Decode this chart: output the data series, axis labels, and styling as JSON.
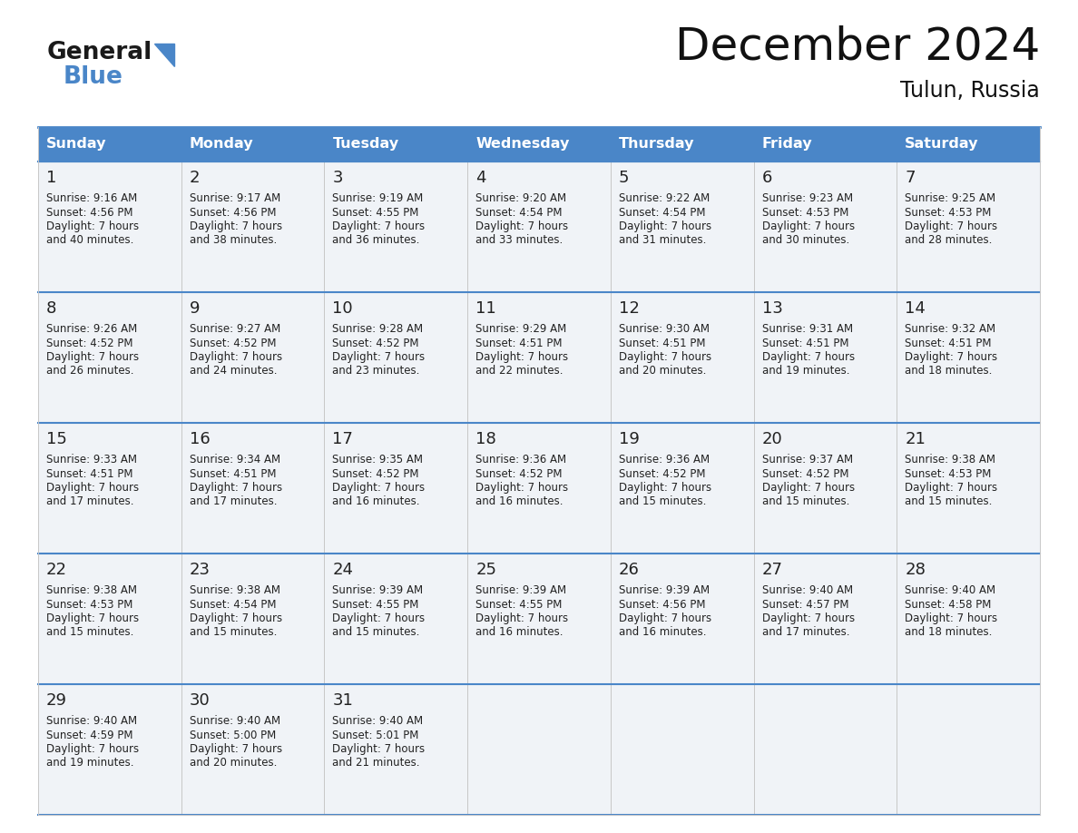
{
  "title": "December 2024",
  "subtitle": "Tulun, Russia",
  "header_bg": "#4a86c8",
  "header_text_color": "#ffffff",
  "cell_bg": "#f0f3f7",
  "empty_cell_bg": "#f0f3f7",
  "border_color": "#4a86c8",
  "row_border_color": "#4a86c8",
  "text_color": "#222222",
  "days_of_week": [
    "Sunday",
    "Monday",
    "Tuesday",
    "Wednesday",
    "Thursday",
    "Friday",
    "Saturday"
  ],
  "calendar_data": [
    [
      {
        "day": 1,
        "sunrise": "9:16 AM",
        "sunset": "4:56 PM",
        "daylight": "7 hours",
        "minutes": "and 40 minutes."
      },
      {
        "day": 2,
        "sunrise": "9:17 AM",
        "sunset": "4:56 PM",
        "daylight": "7 hours",
        "minutes": "and 38 minutes."
      },
      {
        "day": 3,
        "sunrise": "9:19 AM",
        "sunset": "4:55 PM",
        "daylight": "7 hours",
        "minutes": "and 36 minutes."
      },
      {
        "day": 4,
        "sunrise": "9:20 AM",
        "sunset": "4:54 PM",
        "daylight": "7 hours",
        "minutes": "and 33 minutes."
      },
      {
        "day": 5,
        "sunrise": "9:22 AM",
        "sunset": "4:54 PM",
        "daylight": "7 hours",
        "minutes": "and 31 minutes."
      },
      {
        "day": 6,
        "sunrise": "9:23 AM",
        "sunset": "4:53 PM",
        "daylight": "7 hours",
        "minutes": "and 30 minutes."
      },
      {
        "day": 7,
        "sunrise": "9:25 AM",
        "sunset": "4:53 PM",
        "daylight": "7 hours",
        "minutes": "and 28 minutes."
      }
    ],
    [
      {
        "day": 8,
        "sunrise": "9:26 AM",
        "sunset": "4:52 PM",
        "daylight": "7 hours",
        "minutes": "and 26 minutes."
      },
      {
        "day": 9,
        "sunrise": "9:27 AM",
        "sunset": "4:52 PM",
        "daylight": "7 hours",
        "minutes": "and 24 minutes."
      },
      {
        "day": 10,
        "sunrise": "9:28 AM",
        "sunset": "4:52 PM",
        "daylight": "7 hours",
        "minutes": "and 23 minutes."
      },
      {
        "day": 11,
        "sunrise": "9:29 AM",
        "sunset": "4:51 PM",
        "daylight": "7 hours",
        "minutes": "and 22 minutes."
      },
      {
        "day": 12,
        "sunrise": "9:30 AM",
        "sunset": "4:51 PM",
        "daylight": "7 hours",
        "minutes": "and 20 minutes."
      },
      {
        "day": 13,
        "sunrise": "9:31 AM",
        "sunset": "4:51 PM",
        "daylight": "7 hours",
        "minutes": "and 19 minutes."
      },
      {
        "day": 14,
        "sunrise": "9:32 AM",
        "sunset": "4:51 PM",
        "daylight": "7 hours",
        "minutes": "and 18 minutes."
      }
    ],
    [
      {
        "day": 15,
        "sunrise": "9:33 AM",
        "sunset": "4:51 PM",
        "daylight": "7 hours",
        "minutes": "and 17 minutes."
      },
      {
        "day": 16,
        "sunrise": "9:34 AM",
        "sunset": "4:51 PM",
        "daylight": "7 hours",
        "minutes": "and 17 minutes."
      },
      {
        "day": 17,
        "sunrise": "9:35 AM",
        "sunset": "4:52 PM",
        "daylight": "7 hours",
        "minutes": "and 16 minutes."
      },
      {
        "day": 18,
        "sunrise": "9:36 AM",
        "sunset": "4:52 PM",
        "daylight": "7 hours",
        "minutes": "and 16 minutes."
      },
      {
        "day": 19,
        "sunrise": "9:36 AM",
        "sunset": "4:52 PM",
        "daylight": "7 hours",
        "minutes": "and 15 minutes."
      },
      {
        "day": 20,
        "sunrise": "9:37 AM",
        "sunset": "4:52 PM",
        "daylight": "7 hours",
        "minutes": "and 15 minutes."
      },
      {
        "day": 21,
        "sunrise": "9:38 AM",
        "sunset": "4:53 PM",
        "daylight": "7 hours",
        "minutes": "and 15 minutes."
      }
    ],
    [
      {
        "day": 22,
        "sunrise": "9:38 AM",
        "sunset": "4:53 PM",
        "daylight": "7 hours",
        "minutes": "and 15 minutes."
      },
      {
        "day": 23,
        "sunrise": "9:38 AM",
        "sunset": "4:54 PM",
        "daylight": "7 hours",
        "minutes": "and 15 minutes."
      },
      {
        "day": 24,
        "sunrise": "9:39 AM",
        "sunset": "4:55 PM",
        "daylight": "7 hours",
        "minutes": "and 15 minutes."
      },
      {
        "day": 25,
        "sunrise": "9:39 AM",
        "sunset": "4:55 PM",
        "daylight": "7 hours",
        "minutes": "and 16 minutes."
      },
      {
        "day": 26,
        "sunrise": "9:39 AM",
        "sunset": "4:56 PM",
        "daylight": "7 hours",
        "minutes": "and 16 minutes."
      },
      {
        "day": 27,
        "sunrise": "9:40 AM",
        "sunset": "4:57 PM",
        "daylight": "7 hours",
        "minutes": "and 17 minutes."
      },
      {
        "day": 28,
        "sunrise": "9:40 AM",
        "sunset": "4:58 PM",
        "daylight": "7 hours",
        "minutes": "and 18 minutes."
      }
    ],
    [
      {
        "day": 29,
        "sunrise": "9:40 AM",
        "sunset": "4:59 PM",
        "daylight": "7 hours",
        "minutes": "and 19 minutes."
      },
      {
        "day": 30,
        "sunrise": "9:40 AM",
        "sunset": "5:00 PM",
        "daylight": "7 hours",
        "minutes": "and 20 minutes."
      },
      {
        "day": 31,
        "sunrise": "9:40 AM",
        "sunset": "5:01 PM",
        "daylight": "7 hours",
        "minutes": "and 21 minutes."
      },
      null,
      null,
      null,
      null
    ]
  ],
  "logo_general_color": "#1a1a1a",
  "logo_blue_color": "#4a86c8",
  "logo_triangle_color": "#4a86c8"
}
